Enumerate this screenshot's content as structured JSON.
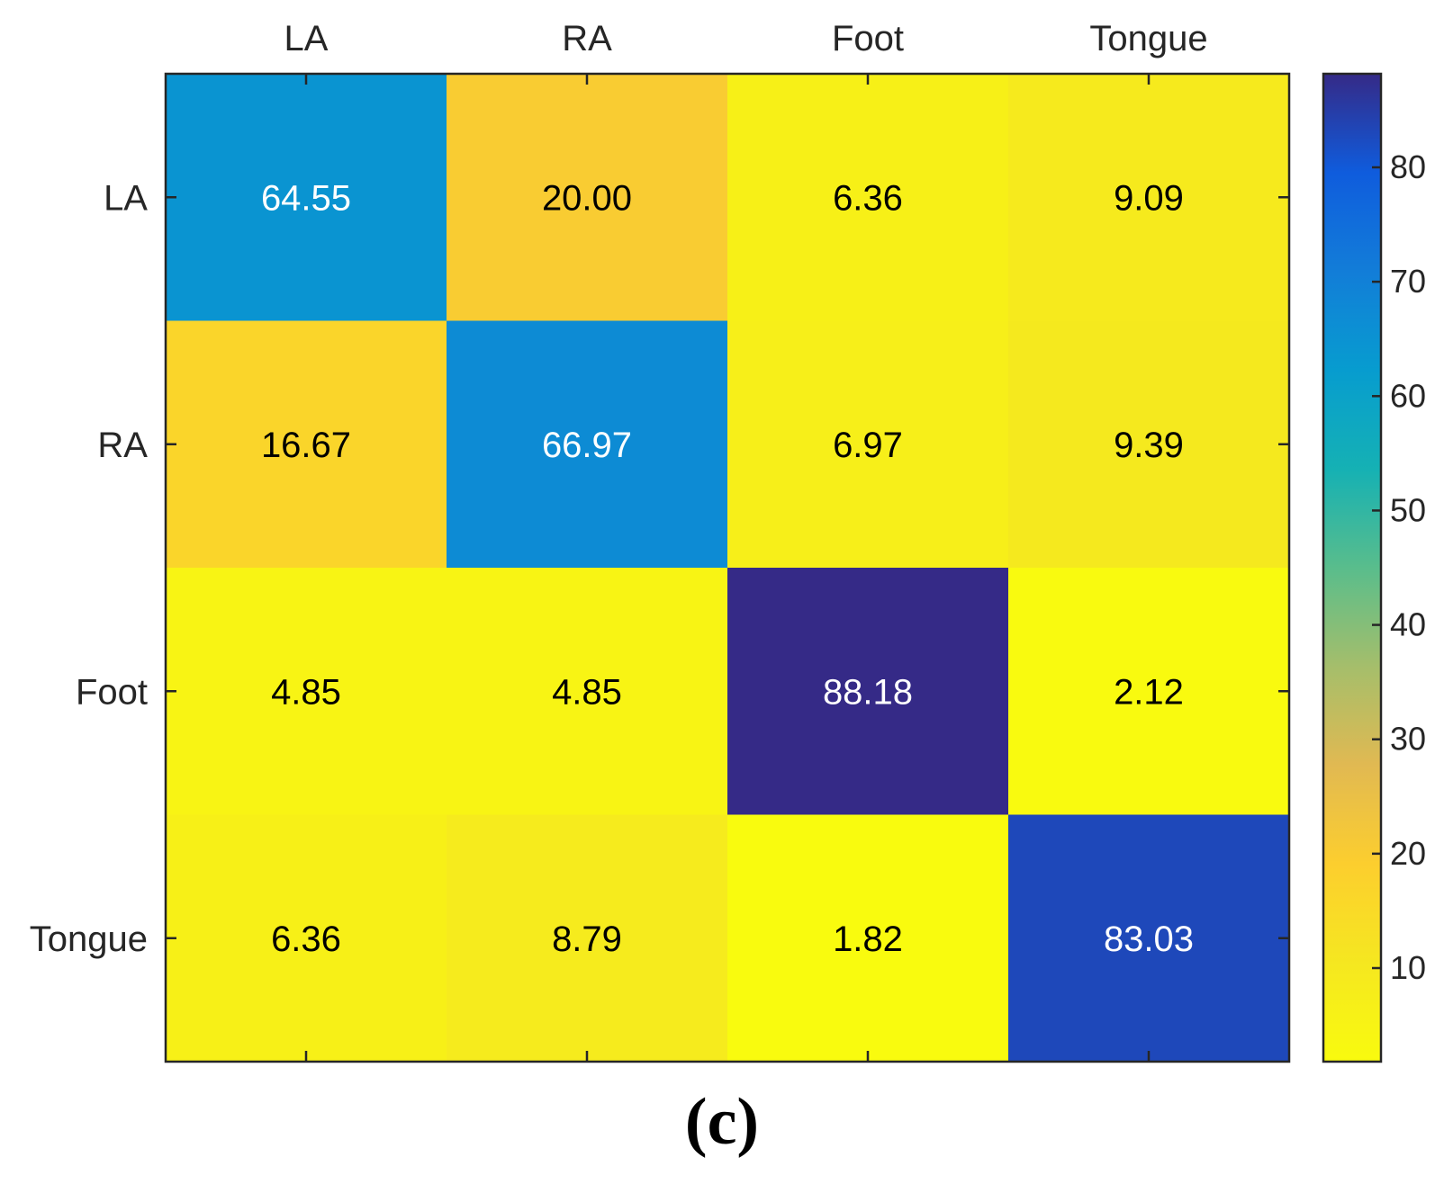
{
  "panel_label": "(c)",
  "chart_data": {
    "type": "heatmap",
    "title": "",
    "xlabel": "",
    "ylabel": "",
    "x_categories": [
      "LA",
      "RA",
      "Foot",
      "Tongue"
    ],
    "y_categories": [
      "LA",
      "RA",
      "Foot",
      "Tongue"
    ],
    "values": [
      [
        64.55,
        20.0,
        6.36,
        9.09
      ],
      [
        16.67,
        66.97,
        6.97,
        9.39
      ],
      [
        4.85,
        4.85,
        88.18,
        2.12
      ],
      [
        6.36,
        8.79,
        1.82,
        83.03
      ]
    ],
    "value_labels": [
      [
        "64.55",
        "20.00",
        "6.36",
        "9.09"
      ],
      [
        "16.67",
        "66.97",
        "6.97",
        "9.39"
      ],
      [
        "4.85",
        "4.85",
        "88.18",
        "2.12"
      ],
      [
        "6.36",
        "8.79",
        "1.82",
        "83.03"
      ]
    ],
    "colorbar": {
      "colormap": "parula",
      "range": [
        1.82,
        88.18
      ],
      "ticks": [
        10,
        20,
        30,
        40,
        50,
        60,
        70,
        80
      ],
      "tick_labels": [
        "10",
        "20",
        "30",
        "40",
        "50",
        "60",
        "70",
        "80"
      ]
    },
    "x_axis_position": "top",
    "grid": false
  },
  "colors": {
    "axis": "#262626",
    "light_text": "#ffffff",
    "dark_text": "#000000"
  }
}
